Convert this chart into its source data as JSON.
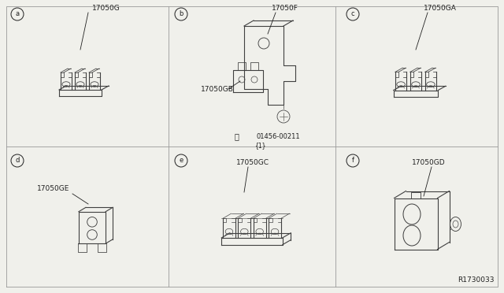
{
  "bg_color": "#f0f0eb",
  "line_color": "#404040",
  "text_color": "#202020",
  "grid_color": "#999999",
  "watermark": "R1730033",
  "figsize": [
    6.4,
    3.72
  ],
  "dpi": 100,
  "panels": [
    {
      "id": "a",
      "part": "17050G",
      "col": 0,
      "row": 0
    },
    {
      "id": "b",
      "part": "17050F",
      "col": 1,
      "row": 0
    },
    {
      "id": "c",
      "part": "17050GA",
      "col": 2,
      "row": 0
    },
    {
      "id": "d",
      "part": "17050GE",
      "col": 0,
      "row": 1
    },
    {
      "id": "e",
      "part": "17050GC",
      "col": 1,
      "row": 1
    },
    {
      "id": "f",
      "part": "17050GD",
      "col": 2,
      "row": 1
    }
  ]
}
